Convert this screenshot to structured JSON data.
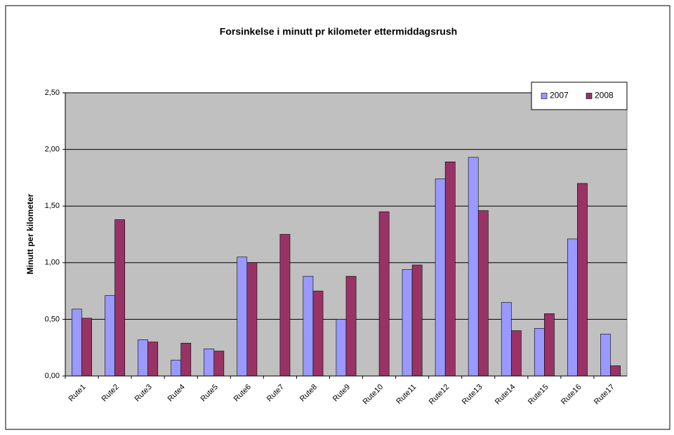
{
  "chart_data": {
    "type": "bar",
    "title": "Forsinkelse i minutt pr kilometer ettermiddagsrush",
    "y_label": "Minutt per kilometer",
    "categories": [
      "Rute1",
      "Rute2",
      "Rute3",
      "Rute4",
      "Rute5",
      "Rute6",
      "Rute7",
      "Rute8",
      "Rute9",
      "Rute10",
      "Rute11",
      "Rute12",
      "Rute13",
      "Rute14",
      "Rute15",
      "Rute16",
      "Rute17"
    ],
    "series": [
      {
        "name": "2007",
        "color": "#9999ff",
        "values": [
          0.59,
          0.71,
          0.32,
          0.14,
          0.24,
          1.05,
          null,
          0.88,
          0.5,
          null,
          0.94,
          1.74,
          1.93,
          0.65,
          0.42,
          1.21,
          0.37
        ]
      },
      {
        "name": "2008",
        "color": "#993366",
        "values": [
          0.51,
          1.38,
          0.3,
          0.29,
          0.22,
          1.0,
          1.25,
          0.75,
          0.88,
          1.45,
          0.98,
          1.89,
          1.46,
          0.4,
          0.55,
          1.7,
          0.09
        ]
      }
    ],
    "ylim": [
      0,
      2.5
    ],
    "yticks": [
      {
        "value": 0,
        "label": "0,00"
      },
      {
        "value": 0.5,
        "label": "0,50"
      },
      {
        "value": 1,
        "label": "1,00"
      },
      {
        "value": 1.5,
        "label": "1,50"
      },
      {
        "value": 2,
        "label": "2,00"
      },
      {
        "value": 2.5,
        "label": "2,50"
      }
    ],
    "grid": true,
    "plot_background": "#c0c0c0",
    "legend_position": "top-right"
  }
}
